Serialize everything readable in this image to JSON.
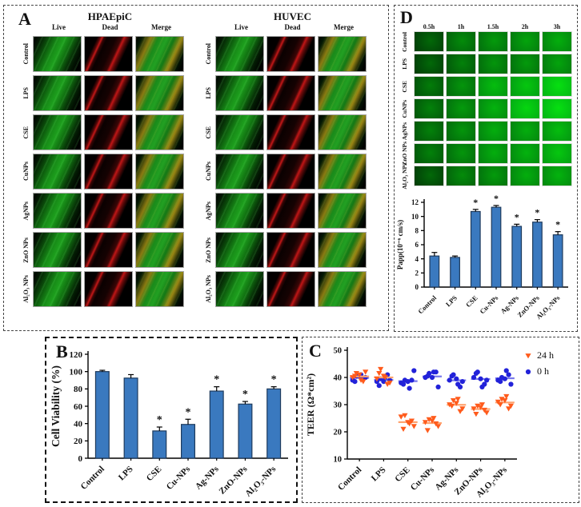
{
  "panel_a": {
    "label": "A",
    "column_headers": [
      "Live",
      "Dead",
      "Merge"
    ],
    "row_labels": [
      "Control",
      "LPS",
      "CSE",
      "CuNPs",
      "AgNPs",
      "ZnO NPs",
      "Al₂O₃ NPs"
    ],
    "sub_panels": [
      {
        "title": "HPAEpiC"
      },
      {
        "title": "HUVEC"
      }
    ]
  },
  "panel_b": {
    "label": "B"
  },
  "panel_c": {
    "label": "C"
  },
  "panel_d": {
    "label": "D",
    "time_points": [
      "0.5h",
      "1h",
      "1.5h",
      "2h",
      "3h"
    ],
    "row_labels": [
      "Control",
      "LPS",
      "CSE",
      "CuNPs",
      "AgNPs",
      "ZnO NPs",
      "Al₂O₃ NPs"
    ],
    "intensities": [
      [
        0.15,
        0.35,
        0.45,
        0.5,
        0.55
      ],
      [
        0.15,
        0.3,
        0.4,
        0.45,
        0.5
      ],
      [
        0.25,
        0.4,
        0.65,
        0.7,
        0.85
      ],
      [
        0.3,
        0.45,
        0.6,
        0.8,
        0.85
      ],
      [
        0.3,
        0.4,
        0.55,
        0.55,
        0.65
      ],
      [
        0.3,
        0.4,
        0.55,
        0.6,
        0.7
      ],
      [
        0.15,
        0.35,
        0.45,
        0.55,
        0.6
      ]
    ]
  },
  "chart_data": [
    {
      "panel": "B",
      "type": "bar",
      "title": "",
      "categories": [
        "Control",
        "LPS",
        "CSE",
        "Cu-NPs",
        "Ag-NPs",
        "ZnO-NPs",
        "Al₂O₃-NPs"
      ],
      "values": [
        100,
        92.5,
        31.5,
        39,
        77.5,
        62.5,
        80
      ],
      "errors": [
        1.5,
        4,
        4.5,
        6,
        5,
        3,
        2.5
      ],
      "significant": [
        false,
        false,
        true,
        true,
        true,
        true,
        true
      ],
      "xlabel": "",
      "ylabel": "Cell Viability (%)",
      "ylim": [
        0,
        120
      ],
      "ytick_step": 20,
      "grid": false,
      "bar_color": "#3A79BF",
      "bar_border": "#1E3A5C"
    },
    {
      "panel": "C",
      "type": "scatter",
      "title": "",
      "categories": [
        "Control",
        "LPS",
        "CSE",
        "Cu-NPs",
        "Ag-NPs",
        "ZnO-NPs",
        "Al₂O₃-NPs"
      ],
      "xlabel": "",
      "ylabel": "TEER (Ω*cm²)",
      "ylim": [
        10,
        50
      ],
      "ytick_step": 10,
      "grid": false,
      "legend_position": "top-right",
      "series": [
        {
          "name": "24 h",
          "marker": "triangle-down",
          "color": "#FF5B1C",
          "mean_color": "#FFA470",
          "groups": [
            [
              40,
              41.5,
              39,
              42,
              40.5,
              38.5,
              41
            ],
            [
              39.5,
              43,
              40,
              38,
              41.5,
              37.5,
              40.5
            ],
            [
              25.5,
              26,
              23,
              22,
              21,
              24,
              23.5
            ],
            [
              23.5,
              24.5,
              25,
              22,
              20.5,
              23,
              24
            ],
            [
              30,
              31.5,
              32,
              28.5,
              29.5,
              27.5,
              30.5
            ],
            [
              28.5,
              29.5,
              30,
              27,
              26.5,
              28,
              29
            ],
            [
              31,
              32,
              33,
              29.5,
              30,
              28.5,
              31.5
            ]
          ]
        },
        {
          "name": "0 h",
          "marker": "circle",
          "color": "#2222D9",
          "mean_color": "#7A7AEC",
          "groups": [
            [
              39,
              40.5,
              41,
              40,
              38.5,
              39.5,
              40.5
            ],
            [
              38.5,
              39.5,
              40,
              39,
              37,
              41,
              38.5
            ],
            [
              38,
              39,
              36,
              42.5,
              37.5,
              39,
              38.5
            ],
            [
              40,
              41.5,
              42,
              36.5,
              40.5,
              42,
              40
            ],
            [
              39,
              41,
              37.5,
              38.5,
              40.5,
              36.5,
              39.5
            ],
            [
              40,
              42,
              36.5,
              39,
              41.5,
              37.5,
              39.5
            ],
            [
              39,
              40,
              42.5,
              37.5,
              38.5,
              41,
              39.5
            ]
          ]
        }
      ]
    },
    {
      "panel": "D",
      "type": "bar",
      "title": "",
      "categories": [
        "Control",
        "LPS",
        "CSE",
        "Cu-NPs",
        "Ag-NPs",
        "ZnO-NPs",
        "Al₂O₃-NPs"
      ],
      "values": [
        4.4,
        4.2,
        10.7,
        11.3,
        8.6,
        9.2,
        7.4
      ],
      "errors": [
        0.5,
        0.2,
        0.3,
        0.25,
        0.3,
        0.35,
        0.45
      ],
      "significant": [
        false,
        false,
        true,
        true,
        true,
        true,
        true
      ],
      "xlabel": "",
      "ylabel": "Papp(10⁻⁶ cm/s)",
      "ylim": [
        0,
        12
      ],
      "ytick_step": 2,
      "grid": false,
      "bar_color": "#3A79BF",
      "bar_border": "#1E3A5C"
    }
  ]
}
